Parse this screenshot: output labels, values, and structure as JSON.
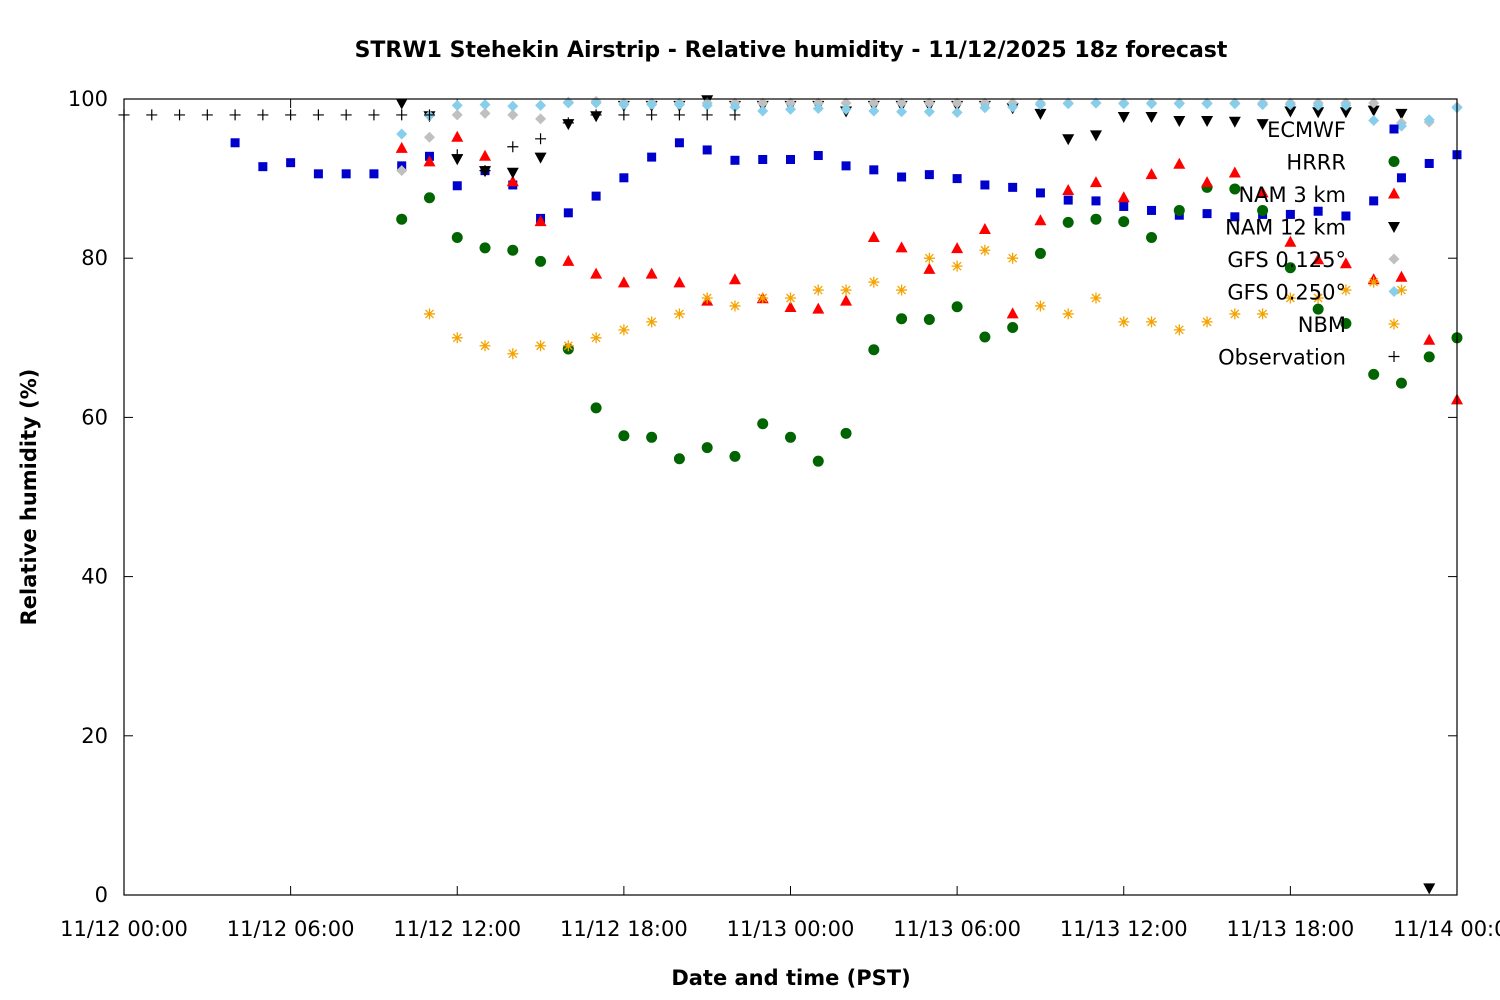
{
  "chart_data": {
    "type": "scatter",
    "title": "STRW1 Stehekin Airstrip - Relative humidity - 11/12/2025 18z forecast",
    "xlabel": "Date and time (PST)",
    "ylabel": "Relative humidity (%)",
    "xlim": [
      0,
      48
    ],
    "ylim": [
      0,
      100
    ],
    "x_unit": "hours since 11/12 00:00",
    "x_ticks": [
      0,
      6,
      12,
      18,
      24,
      30,
      36,
      42,
      48
    ],
    "x_tick_labels": [
      "11/12 00:00",
      "11/12 06:00",
      "11/12 12:00",
      "11/12 18:00",
      "11/13 00:00",
      "11/13 06:00",
      "11/13 12:00",
      "11/13 18:00",
      "11/14 00:00"
    ],
    "y_ticks": [
      0,
      20,
      40,
      60,
      80,
      100
    ],
    "y_tick_labels": [
      "0",
      "20",
      "40",
      "60",
      "80",
      "100"
    ],
    "legend_position": "top-right (inside)",
    "series": [
      {
        "name": "ECMWF",
        "marker": "square",
        "color": "#0000cc",
        "x": [
          4,
          5,
          6,
          7,
          8,
          9,
          10,
          11,
          12,
          13,
          14,
          15,
          16,
          17,
          18,
          19,
          20,
          21,
          22,
          23,
          24,
          25,
          26,
          27,
          28,
          29,
          30,
          31,
          32,
          33,
          34,
          35,
          36,
          37,
          38,
          39,
          40,
          41,
          42,
          43,
          44,
          45,
          46,
          47,
          48
        ],
        "y": [
          94.5,
          91.5,
          92,
          90.6,
          90.6,
          90.6,
          91.6,
          92.8,
          89.1,
          91,
          89.2,
          85,
          85.7,
          87.8,
          90.1,
          92.7,
          94.5,
          93.6,
          92.3,
          92.4,
          92.4,
          92.9,
          91.6,
          91.1,
          90.2,
          90.5,
          90,
          89.2,
          88.9,
          88.2,
          87.3,
          87.2,
          86.5,
          86,
          85.4,
          85.6,
          85.2,
          85.5,
          85.5,
          85.9,
          85.3,
          87.2,
          90.1,
          91.9,
          93
        ]
      },
      {
        "name": "HRRR",
        "marker": "circle",
        "color": "#006400",
        "x": [
          10,
          11,
          12,
          13,
          14,
          15,
          16,
          17,
          18,
          19,
          20,
          21,
          22,
          23,
          24,
          25,
          26,
          27,
          28,
          29,
          30,
          31,
          32,
          33,
          34,
          35,
          36,
          37,
          38,
          39,
          40,
          41,
          42,
          43,
          44,
          45,
          46,
          47,
          48
        ],
        "y": [
          84.9,
          87.6,
          82.6,
          81.3,
          81,
          79.6,
          68.6,
          61.2,
          57.7,
          57.5,
          54.8,
          56.2,
          55.1,
          59.2,
          57.5,
          54.5,
          58,
          68.5,
          72.4,
          72.3,
          73.9,
          70.1,
          71.3,
          80.6,
          84.5,
          84.9,
          84.6,
          82.6,
          86,
          88.9,
          88.7,
          86,
          78.8,
          73.6,
          71.8,
          65.4,
          64.3,
          67.6,
          70
        ]
      },
      {
        "name": "NAM 3 km",
        "marker": "triangle",
        "color": "#ff0000",
        "x": [
          10,
          11,
          12,
          13,
          14,
          15,
          16,
          17,
          18,
          19,
          20,
          21,
          22,
          23,
          24,
          25,
          26,
          27,
          28,
          29,
          30,
          31,
          32,
          33,
          34,
          35,
          36,
          37,
          38,
          39,
          40,
          41,
          42,
          43,
          44,
          45,
          46,
          47,
          48
        ],
        "y": [
          93.8,
          92.1,
          95.2,
          92.8,
          89.6,
          84.6,
          79.6,
          78,
          76.9,
          78,
          76.9,
          74.6,
          77.3,
          74.9,
          73.8,
          73.6,
          74.6,
          82.6,
          81.3,
          78.6,
          81.2,
          83.6,
          73,
          84.7,
          88.5,
          89.5,
          87.6,
          90.5,
          91.8,
          89.5,
          90.7,
          88.2,
          82,
          79.8,
          79.3,
          77.3,
          77.6,
          69.7,
          62.2
        ]
      },
      {
        "name": "NAM 12 km",
        "marker": "inverted-triangle",
        "color": "#000000",
        "x": [
          10,
          11,
          12,
          13,
          14,
          15,
          16,
          17,
          18,
          19,
          20,
          21,
          22,
          23,
          24,
          25,
          26,
          27,
          28,
          29,
          30,
          31,
          32,
          33,
          34,
          35,
          36,
          37,
          38,
          39,
          40,
          41,
          42,
          43,
          44,
          45,
          46,
          47
        ],
        "y": [
          99.5,
          97.9,
          92.5,
          91,
          90.8,
          92.7,
          96.9,
          97.9,
          99.2,
          99.2,
          99.2,
          99.9,
          99.2,
          99.2,
          99.2,
          99.2,
          98.5,
          99.2,
          99.2,
          99.2,
          99.2,
          99.2,
          98.9,
          98.2,
          95,
          95.5,
          97.8,
          97.8,
          97.3,
          97.3,
          97.2,
          96.9,
          98.5,
          98.4,
          98.4,
          98.6,
          98.2,
          0.9
        ]
      },
      {
        "name": "GFS 0.125°",
        "marker": "diamond",
        "color": "#c0c0c0",
        "x": [
          10,
          11,
          12,
          13,
          14,
          15,
          16,
          17,
          18,
          19,
          20,
          21,
          22,
          23,
          24,
          25,
          26,
          27,
          28,
          29,
          30,
          31,
          32,
          33,
          34,
          35,
          36,
          37,
          38,
          39,
          40,
          41,
          42,
          43,
          44,
          45,
          46,
          47,
          48
        ],
        "y": [
          91,
          95.2,
          98,
          98.2,
          98,
          97.5,
          99.6,
          99.7,
          99.5,
          99.5,
          99.5,
          99.5,
          99.5,
          99.5,
          99.5,
          99.5,
          99.5,
          99.5,
          99.5,
          99.5,
          99.5,
          99.5,
          99.5,
          99.5,
          99.5,
          99.5,
          99.5,
          99.5,
          99.5,
          99.5,
          99.5,
          99.5,
          99.5,
          99.5,
          99.5,
          99.5,
          97,
          97.1,
          99
        ]
      },
      {
        "name": "GFS 0.250°",
        "marker": "diamond",
        "color": "#87ceeb",
        "x": [
          10,
          11,
          12,
          13,
          14,
          15,
          16,
          17,
          18,
          19,
          20,
          21,
          22,
          23,
          24,
          25,
          26,
          27,
          28,
          29,
          30,
          31,
          32,
          33,
          34,
          35,
          36,
          37,
          38,
          39,
          40,
          41,
          42,
          43,
          44,
          45,
          46,
          47,
          48
        ],
        "y": [
          95.6,
          97.9,
          99.2,
          99.3,
          99.1,
          99.2,
          99.5,
          99.5,
          99.3,
          99.3,
          99.3,
          99.2,
          99,
          98.5,
          98.7,
          98.8,
          98.7,
          98.5,
          98.4,
          98.4,
          98.3,
          98.9,
          99,
          99.3,
          99.4,
          99.5,
          99.4,
          99.4,
          99.4,
          99.4,
          99.4,
          99.3,
          99.3,
          99.2,
          99.2,
          97.3,
          96.6,
          97.4,
          98.9
        ]
      },
      {
        "name": "NBM",
        "marker": "asterisk",
        "color": "#f4a300",
        "x": [
          11,
          12,
          13,
          14,
          15,
          16,
          17,
          18,
          19,
          20,
          21,
          22,
          23,
          24,
          25,
          26,
          27,
          28,
          29,
          30,
          31,
          32,
          33,
          34,
          35,
          36,
          37,
          38,
          39,
          40,
          41,
          42,
          43,
          44,
          45,
          46
        ],
        "y": [
          73,
          70,
          69,
          68,
          69,
          69,
          70,
          71,
          72,
          73,
          75,
          74,
          75,
          75,
          76,
          76,
          77,
          76,
          80,
          79,
          81,
          80,
          74,
          73,
          75,
          72,
          72,
          71,
          72,
          73,
          73,
          75,
          75,
          76,
          77,
          76
        ]
      },
      {
        "name": "Observation",
        "marker": "plus",
        "color": "#000000",
        "x": [
          0,
          1,
          2,
          3,
          4,
          5,
          6,
          7,
          8,
          9,
          10,
          11,
          12,
          13,
          14,
          15,
          16,
          17,
          18,
          19,
          20,
          21,
          22
        ],
        "y": [
          98,
          98,
          98,
          98,
          98,
          98,
          98,
          98,
          98,
          98,
          98,
          98,
          93,
          91,
          94,
          95,
          97,
          98,
          98,
          98,
          98,
          98,
          98
        ]
      }
    ]
  }
}
